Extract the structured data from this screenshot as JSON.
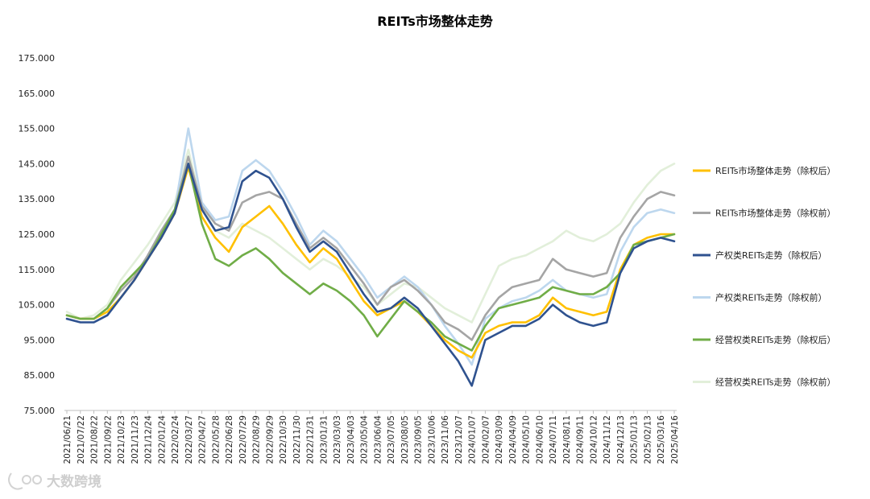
{
  "chart_data": {
    "type": "line",
    "title": "REITs市场整体走势",
    "xlabel": "",
    "ylabel": "",
    "ylim": [
      75,
      175
    ],
    "yticks": [
      "75.000",
      "85.000",
      "95.000",
      "105.000",
      "115.000",
      "125.000",
      "135.000",
      "145.000",
      "155.000",
      "165.000",
      "175.000"
    ],
    "grid": false,
    "legend_position": "right",
    "x_tick_labels": [
      "2021/06/21",
      "2021/07/22",
      "2021/08/22",
      "2021/09/22",
      "2021/10/23",
      "2021/11/23",
      "2021/12/24",
      "2022/01/24",
      "2022/02/24",
      "2022/03/27",
      "2022/04/27",
      "2022/05/28",
      "2022/06/28",
      "2022/07/29",
      "2022/08/29",
      "2022/09/29",
      "2022/10/30",
      "2022/11/30",
      "2022/12/31",
      "2023/01/31",
      "2023/03/03",
      "2023/04/03",
      "2023/05/04",
      "2023/06/04",
      "2023/07/05",
      "2023/08/05",
      "2023/09/05",
      "2023/10/06",
      "2023/11/06",
      "2023/12/07",
      "2024/01/07",
      "2024/02/07",
      "2024/03/09",
      "2024/04/09",
      "2024/05/10",
      "2024/06/10",
      "2024/07/11",
      "2024/08/11",
      "2024/09/11",
      "2024/10/12",
      "2024/11/12",
      "2024/12/13",
      "2025/01/13",
      "2025/02/13",
      "2025/03/16",
      "2025/04/16"
    ],
    "series": [
      {
        "name": "REITs市场整体走势（除权后）",
        "color": "#FFC000",
        "width": 2.6,
        "values": [
          102,
          101,
          101,
          103,
          107,
          112,
          118,
          124,
          131,
          144,
          130,
          124,
          120,
          127,
          130,
          133,
          128,
          122,
          117,
          121,
          118,
          112,
          106,
          102,
          104,
          106,
          103,
          99,
          95,
          92,
          90,
          97,
          99,
          100,
          100,
          102,
          107,
          104,
          103,
          102,
          103,
          115,
          122,
          124,
          125,
          125
        ]
      },
      {
        "name": "REITs市场整体走势（除权前）",
        "color": "#A5A5A5",
        "width": 2.6,
        "values": [
          102,
          101,
          101,
          104,
          109,
          113,
          119,
          126,
          132,
          147,
          133,
          128,
          126,
          134,
          136,
          137,
          135,
          128,
          121,
          124,
          121,
          116,
          111,
          105,
          110,
          112,
          109,
          105,
          100,
          98,
          95,
          102,
          107,
          110,
          111,
          112,
          118,
          115,
          114,
          113,
          114,
          124,
          130,
          135,
          137,
          136
        ]
      },
      {
        "name": "产权类REITs走势（除权后）",
        "color": "#2F528F",
        "width": 2.6,
        "values": [
          101,
          100,
          100,
          102,
          107,
          112,
          118,
          124,
          131,
          145,
          132,
          126,
          127,
          140,
          143,
          141,
          135,
          127,
          120,
          123,
          120,
          114,
          108,
          103,
          104,
          107,
          104,
          99,
          94,
          89,
          82,
          95,
          97,
          99,
          99,
          101,
          105,
          102,
          100,
          99,
          100,
          114,
          121,
          123,
          124,
          123
        ]
      },
      {
        "name": "产权类REITs走势（除权前）",
        "color": "#BDD7EE",
        "width": 2.6,
        "values": [
          101,
          100,
          100,
          102,
          107,
          112,
          119,
          126,
          132,
          155,
          134,
          129,
          130,
          143,
          146,
          143,
          137,
          130,
          122,
          126,
          123,
          118,
          113,
          107,
          110,
          113,
          110,
          105,
          99,
          94,
          88,
          101,
          104,
          106,
          107,
          109,
          112,
          109,
          108,
          107,
          108,
          120,
          127,
          131,
          132,
          131
        ]
      },
      {
        "name": "经营权类REITs走势（除权后）",
        "color": "#70AD47",
        "width": 2.6,
        "values": [
          102,
          101,
          101,
          104,
          110,
          114,
          118,
          125,
          132,
          145,
          128,
          118,
          116,
          119,
          121,
          118,
          114,
          111,
          108,
          111,
          109,
          106,
          102,
          96,
          101,
          106,
          103,
          100,
          96,
          94,
          92,
          99,
          104,
          105,
          106,
          107,
          110,
          109,
          108,
          108,
          110,
          114,
          122,
          123,
          124,
          125
        ]
      },
      {
        "name": "经营权类REITs走势（除权前）",
        "color": "#E2EFDA",
        "width": 2.6,
        "values": [
          103,
          101,
          102,
          105,
          112,
          117,
          122,
          128,
          134,
          149,
          133,
          126,
          124,
          128,
          126,
          124,
          121,
          118,
          115,
          118,
          116,
          113,
          110,
          105,
          108,
          111,
          110,
          107,
          104,
          102,
          100,
          108,
          116,
          118,
          119,
          121,
          123,
          126,
          124,
          123,
          125,
          128,
          134,
          139,
          143,
          145
        ]
      }
    ]
  },
  "watermark": {
    "text": "大数跨境"
  }
}
